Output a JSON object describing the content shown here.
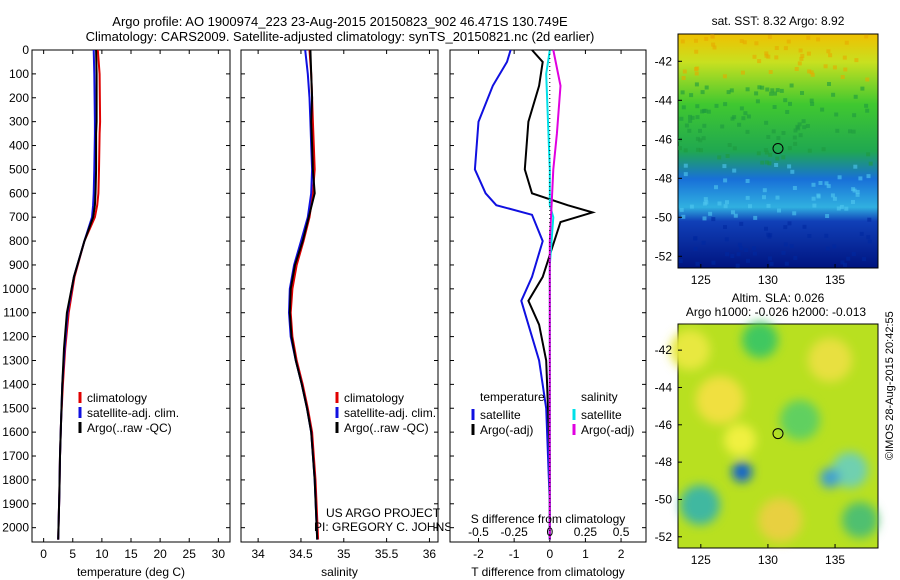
{
  "title_line1": "Argo profile: AO 1900974_223 23-Aug-2015 20150823_902 46.471S 130.749E",
  "title_line2": "Climatology: CARS2009. Satellite-adjusted climatology: synTS_20150821.nc (2d earlier)",
  "side_label": "©IMOS 28-Aug-2015 20:42:55",
  "colors": {
    "climatology": "#e00000",
    "satellite": "#1010e0",
    "argo": "#000000",
    "cyan": "#00e0e8",
    "magenta": "#e000e0"
  },
  "chart_data": [
    {
      "type": "line",
      "xlabel": "temperature (deg C)",
      "xlim": [
        -2,
        32
      ],
      "xticks": [
        "0",
        "5",
        "10",
        "15",
        "20",
        "25",
        "30"
      ],
      "ylim": [
        2060,
        0
      ],
      "yticks": [
        "0",
        "100",
        "200",
        "300",
        "400",
        "500",
        "600",
        "700",
        "800",
        "900",
        "1000",
        "1100",
        "1200",
        "1300",
        "1400",
        "1500",
        "1600",
        "1700",
        "1800",
        "1900",
        "2000"
      ],
      "legend": [
        "climatology",
        "satellite-adj. clim.",
        "Argo(..raw -QC)"
      ],
      "series": [
        {
          "name": "climatology",
          "color": "#e00000",
          "x": [
            9.3,
            9.6,
            9.7,
            9.6,
            9.5,
            9.4,
            9.2,
            8.8,
            7.0,
            5.3,
            4.3,
            3.7,
            3.3,
            3.0,
            2.8,
            2.7,
            2.6,
            2.5
          ],
          "y": [
            0,
            100,
            300,
            350,
            500,
            600,
            650,
            700,
            800,
            950,
            1100,
            1250,
            1400,
            1550,
            1700,
            1850,
            1950,
            2050
          ]
        },
        {
          "name": "satellite-adj. clim.",
          "color": "#1010e0",
          "x": [
            8.6,
            8.7,
            8.8,
            8.8,
            8.7,
            8.6,
            8.5,
            8.3,
            7.0,
            5.2,
            4.1,
            3.6,
            3.2,
            3.0,
            2.8,
            2.7,
            2.6,
            2.5
          ],
          "y": [
            0,
            100,
            300,
            350,
            500,
            600,
            650,
            700,
            800,
            950,
            1100,
            1250,
            1400,
            1550,
            1700,
            1850,
            1950,
            2050
          ]
        },
        {
          "name": "Argo(..raw -QC)",
          "color": "#000000",
          "x": [
            9.0,
            9.1,
            9.1,
            9.0,
            9.0,
            8.9,
            8.8,
            8.5,
            7.0,
            5.2,
            4.0,
            3.5,
            3.2,
            3.0,
            2.8,
            2.7,
            2.6,
            2.5
          ],
          "y": [
            0,
            100,
            300,
            350,
            500,
            600,
            650,
            700,
            800,
            950,
            1100,
            1250,
            1400,
            1550,
            1700,
            1850,
            1950,
            2050
          ]
        }
      ]
    },
    {
      "type": "line",
      "xlabel": "salinity",
      "xlim": [
        33.8,
        36.1
      ],
      "xticks": [
        "34",
        "34.5",
        "35",
        "35.5",
        "36"
      ],
      "ylim": [
        2060,
        0
      ],
      "legend": [
        "climatology",
        "satellite-adj. clim.",
        "Argo(..raw -QC)"
      ],
      "annotation": [
        "US ARGO PROJECT",
        "PI: GREGORY C. JOHNSON"
      ],
      "series": [
        {
          "name": "climatology",
          "color": "#e00000",
          "x": [
            34.6,
            34.62,
            34.63,
            34.64,
            34.65,
            34.66,
            34.64,
            34.6,
            34.53,
            34.45,
            34.4,
            34.38,
            34.4,
            34.45,
            34.52,
            34.58,
            34.63,
            34.67,
            34.7
          ],
          "y": [
            0,
            100,
            200,
            300,
            400,
            500,
            600,
            700,
            800,
            900,
            1000,
            1100,
            1200,
            1300,
            1400,
            1500,
            1600,
            1800,
            2050
          ]
        },
        {
          "name": "satellite-adj. clim.",
          "color": "#1010e0",
          "x": [
            34.55,
            34.58,
            34.6,
            34.61,
            34.62,
            34.63,
            34.62,
            34.58,
            34.5,
            34.42,
            34.37,
            34.36,
            34.38,
            34.44,
            34.51,
            34.57,
            34.62,
            34.66,
            34.69
          ],
          "y": [
            0,
            100,
            200,
            300,
            400,
            500,
            600,
            700,
            800,
            900,
            1000,
            1100,
            1200,
            1300,
            1400,
            1500,
            1600,
            1800,
            2050
          ]
        },
        {
          "name": "Argo(..raw -QC)",
          "color": "#000000",
          "x": [
            34.61,
            34.62,
            34.63,
            34.62,
            34.63,
            34.64,
            34.66,
            34.59,
            34.52,
            34.43,
            34.38,
            34.37,
            34.39,
            34.44,
            34.51,
            34.57,
            34.62,
            34.66,
            34.69
          ],
          "y": [
            0,
            100,
            200,
            300,
            400,
            500,
            600,
            700,
            800,
            900,
            1000,
            1100,
            1200,
            1300,
            1400,
            1500,
            1600,
            1800,
            2050
          ]
        }
      ]
    },
    {
      "type": "line",
      "xlabel": "T difference from climatology",
      "xlabel_top": "S difference from climatology",
      "xlim": [
        -2.8,
        2.7
      ],
      "xticks": [
        "-2",
        "-1",
        "0",
        "1",
        "2"
      ],
      "xticks_top": [
        "-0.5",
        "-0.25",
        "0",
        "0.25",
        "0.5"
      ],
      "ylim": [
        2060,
        0
      ],
      "legend_temperature": [
        "temperature",
        "satellite",
        "Argo(-adj)"
      ],
      "legend_salinity": [
        "salinity",
        "satellite",
        "Argo(-adj)"
      ],
      "series": [
        {
          "name": "satellite",
          "color": "#1010e0",
          "x": [
            -1.1,
            -1.2,
            -1.6,
            -2.0,
            -2.1,
            -1.8,
            -1.5,
            -0.5,
            -0.2,
            -0.5,
            -0.8,
            -0.6,
            -0.3,
            -0.1,
            -0.05,
            0,
            0
          ],
          "y": [
            0,
            50,
            150,
            300,
            500,
            600,
            650,
            690,
            800,
            950,
            1050,
            1150,
            1300,
            1500,
            1700,
            1900,
            2050
          ]
        },
        {
          "name": "Argo(-adj)",
          "color": "#000000",
          "x": [
            -0.5,
            -0.2,
            -0.3,
            -0.6,
            -0.7,
            -0.5,
            0.5,
            1.2,
            0.3,
            -0.2,
            -0.6,
            -0.3,
            -0.1,
            -0.05,
            0,
            0,
            0
          ],
          "y": [
            0,
            50,
            150,
            300,
            500,
            600,
            650,
            680,
            720,
            950,
            1050,
            1150,
            1300,
            1500,
            1700,
            1900,
            2050
          ]
        },
        {
          "name": "satellite (S)",
          "color": "#00e0e8",
          "x": [
            0,
            -0.1,
            -0.05,
            0.0,
            0.0,
            0.1,
            0.0,
            0.0,
            0.0,
            0.0,
            0.0
          ],
          "y": [
            0,
            100,
            300,
            500,
            650,
            700,
            900,
            1100,
            1400,
            1800,
            2050
          ]
        },
        {
          "name": "Argo(-adj) (S)",
          "color": "#e000e0",
          "x": [
            0.1,
            0.3,
            0.2,
            0.1,
            0.05,
            0.0,
            0.0,
            0.0
          ],
          "y": [
            0,
            150,
            350,
            500,
            650,
            800,
            1200,
            2050
          ]
        }
      ]
    },
    {
      "type": "heatmap",
      "title": "sat. SST: 8.32 Argo: 8.92",
      "xticks": [
        "125",
        "130",
        "135"
      ],
      "yticks": [
        "-42",
        "-44",
        "-46",
        "-48",
        "-50",
        "-52"
      ],
      "xlim": [
        123.3,
        138.2
      ],
      "ylim": [
        -52.6,
        -40.6
      ],
      "marker": {
        "lon": 130.75,
        "lat": -46.47
      }
    },
    {
      "type": "heatmap",
      "title": "Altim. SLA: 0.026",
      "subtitle": "Argo h1000: -0.026 h2000: -0.013",
      "xticks": [
        "125",
        "130",
        "135"
      ],
      "yticks": [
        "-42",
        "-44",
        "-46",
        "-48",
        "-50",
        "-52"
      ],
      "xlim": [
        123.3,
        138.2
      ],
      "ylim": [
        -52.6,
        -40.6
      ],
      "marker": {
        "lon": 130.75,
        "lat": -46.47
      }
    }
  ]
}
